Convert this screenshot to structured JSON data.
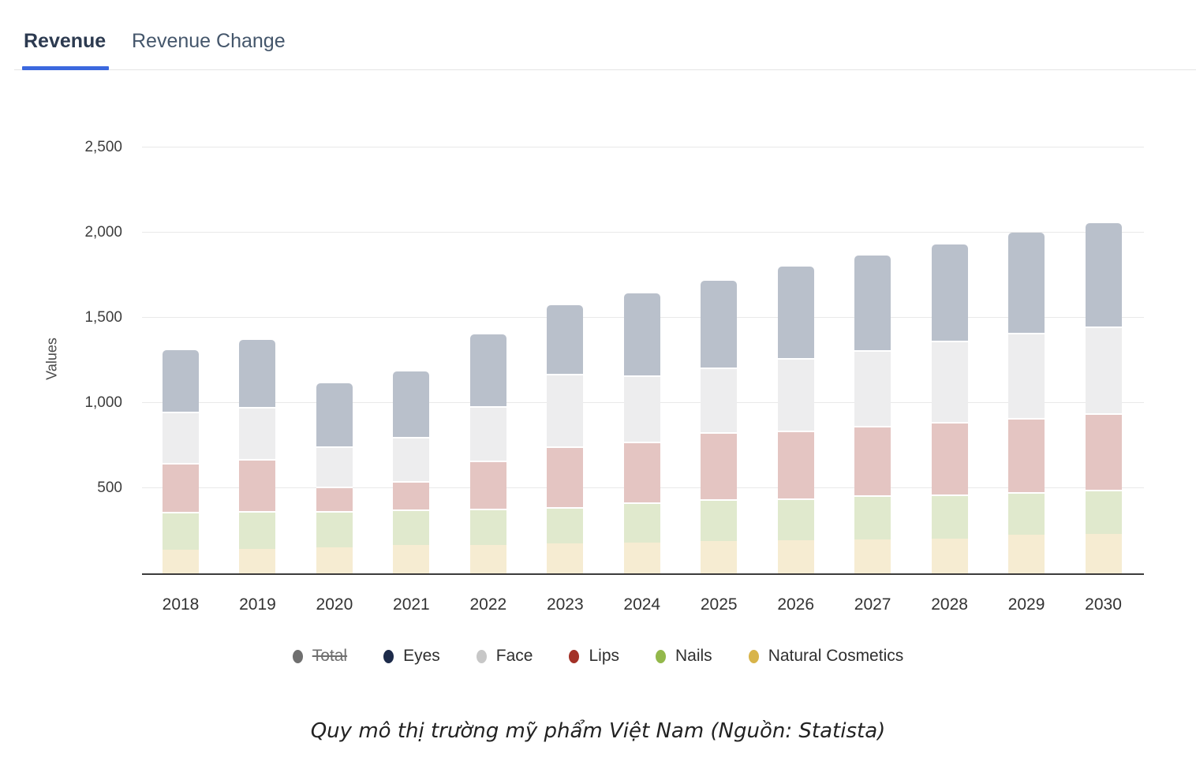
{
  "tabs": {
    "items": [
      {
        "label": "Revenue",
        "active": true
      },
      {
        "label": "Revenue Change",
        "active": false
      }
    ]
  },
  "chart_data": {
    "type": "bar",
    "stacked": true,
    "stack_order": "bottom-to-top as listed in series",
    "categories": [
      "2018",
      "2019",
      "2020",
      "2021",
      "2022",
      "2023",
      "2024",
      "2025",
      "2026",
      "2027",
      "2028",
      "2029",
      "2030"
    ],
    "series": [
      {
        "name": "Natural Cosmetics",
        "legend_color": "#d8b44a",
        "bar_color": "#f6ecd2",
        "values": [
          140,
          145,
          155,
          165,
          165,
          175,
          180,
          190,
          195,
          200,
          205,
          225,
          230
        ]
      },
      {
        "name": "Nails",
        "legend_color": "#93b84b",
        "bar_color": "#e0e9cd",
        "values": [
          220,
          220,
          210,
          210,
          215,
          215,
          235,
          245,
          245,
          260,
          260,
          250,
          260
        ]
      },
      {
        "name": "Lips",
        "legend_color": "#a33127",
        "bar_color": "#e4c5c2",
        "values": [
          290,
          305,
          145,
          165,
          280,
          355,
          360,
          395,
          400,
          405,
          425,
          435,
          450
        ]
      },
      {
        "name": "Face",
        "legend_color": "#c7c7c7",
        "bar_color": "#ededee",
        "values": [
          300,
          305,
          235,
          260,
          320,
          425,
          385,
          380,
          425,
          445,
          475,
          500,
          510
        ]
      },
      {
        "name": "Eyes",
        "legend_color": "#1d2b4a",
        "bar_color": "#b9c0cb",
        "values": [
          360,
          395,
          370,
          385,
          425,
          405,
          485,
          510,
          535,
          555,
          565,
          590,
          605
        ]
      }
    ],
    "totals": [
      1310,
      1370,
      1115,
      1185,
      1405,
      1575,
      1645,
      1720,
      1800,
      1865,
      1930,
      2000,
      2055
    ],
    "hidden_series": [
      "Total"
    ],
    "legend": [
      {
        "label": "Total",
        "color": "#6f6f6f",
        "disabled": true
      },
      {
        "label": "Eyes",
        "color": "#1d2b4a",
        "disabled": false
      },
      {
        "label": "Face",
        "color": "#c7c7c7",
        "disabled": false
      },
      {
        "label": "Lips",
        "color": "#a33127",
        "disabled": false
      },
      {
        "label": "Nails",
        "color": "#93b84b",
        "disabled": false
      },
      {
        "label": "Natural Cosmetics",
        "color": "#d8b44a",
        "disabled": false
      }
    ],
    "ylabel": "Values",
    "yticks": [
      "500",
      "1,000",
      "1,500",
      "2,000",
      "2,500"
    ],
    "ylim": [
      0,
      2500
    ],
    "grid": true,
    "legend_position": "bottom"
  },
  "caption": "Quy mô thị trường mỹ phẩm Việt Nam (Nguồn: Statista)"
}
